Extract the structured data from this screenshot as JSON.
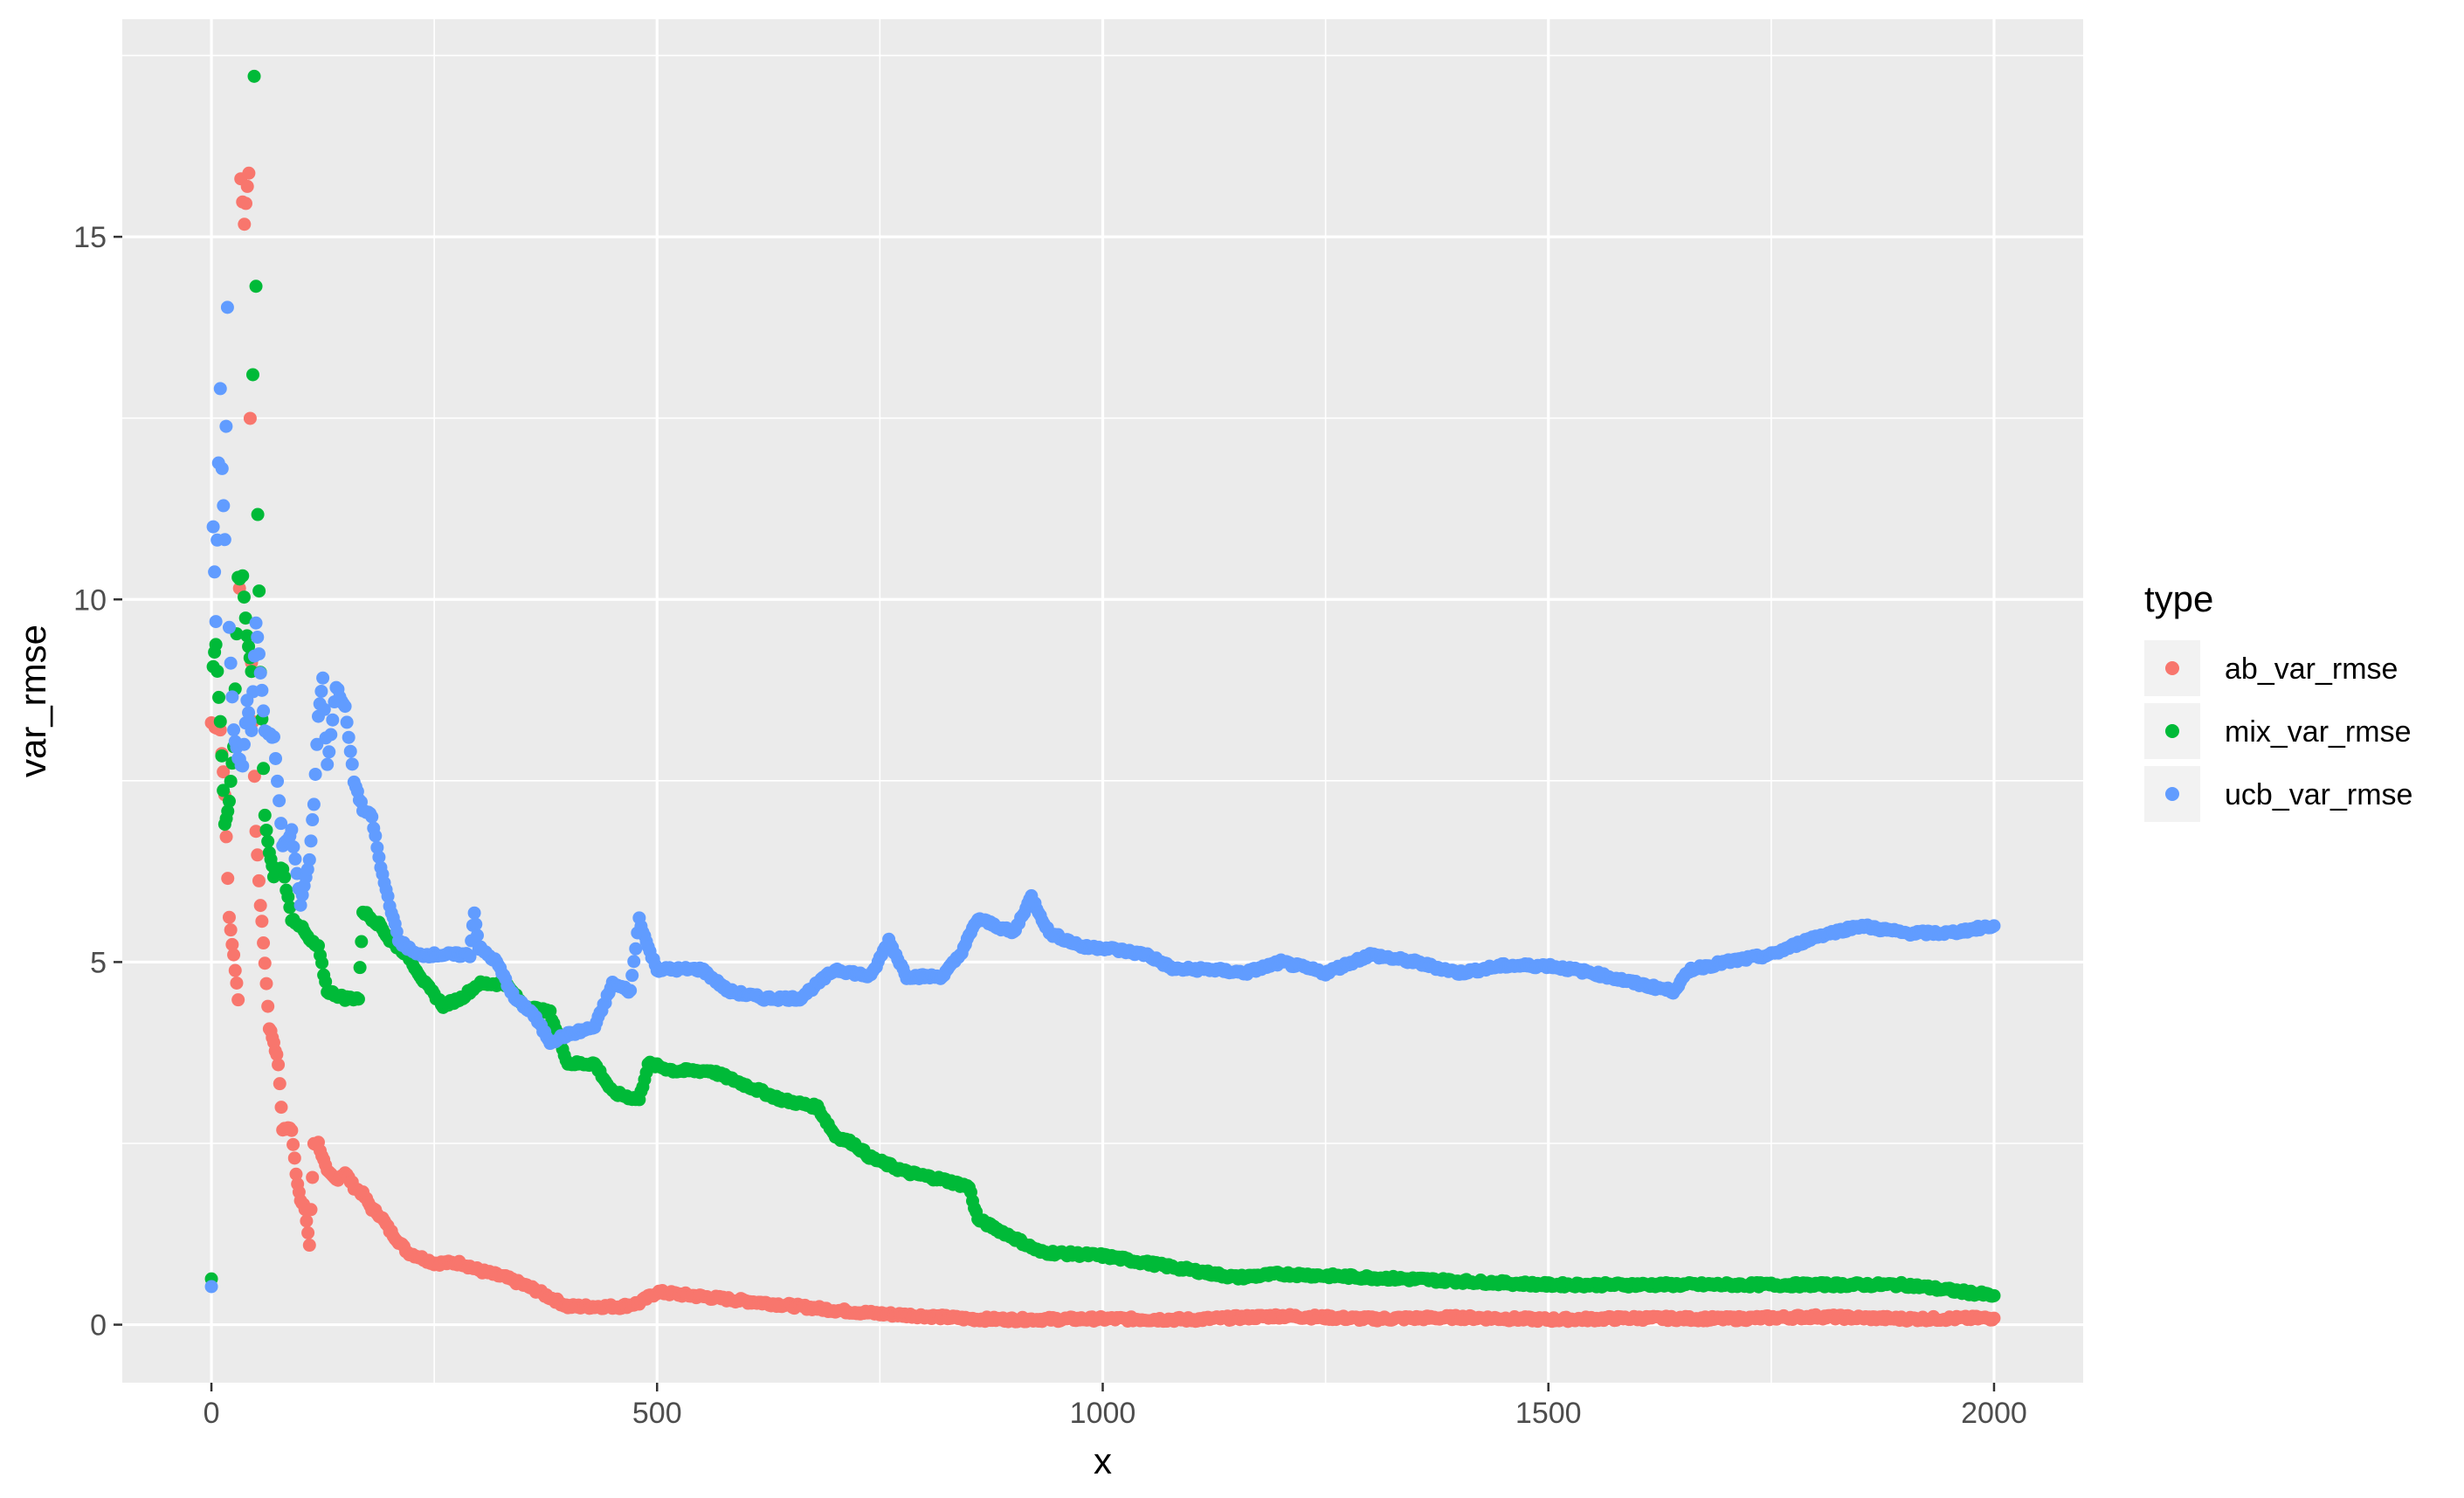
{
  "chart_data": {
    "type": "scatter",
    "title": "",
    "xlabel": "x",
    "ylabel": "var_rmse",
    "xlim": [
      -100,
      2100
    ],
    "ylim": [
      -0.8,
      18
    ],
    "x_ticks": [
      0,
      500,
      1000,
      1500,
      2000
    ],
    "y_ticks": [
      0,
      5,
      10,
      15
    ],
    "grid": true,
    "legend": {
      "title": "type",
      "placement": "right"
    },
    "series": [
      {
        "name": "ab_var_rmse",
        "color": "#F8766D",
        "anchors": [
          [
            0,
            8.3
          ],
          [
            10,
            8.2
          ],
          [
            15,
            7.3
          ],
          [
            20,
            5.6
          ],
          [
            25,
            5.1
          ],
          [
            30,
            4.5
          ],
          [
            33,
            15.8
          ],
          [
            37,
            15.2
          ],
          [
            42,
            15.9
          ],
          [
            45,
            9.1
          ],
          [
            50,
            6.8
          ],
          [
            55,
            5.8
          ],
          [
            60,
            5.0
          ],
          [
            65,
            4.1
          ],
          [
            70,
            3.9
          ],
          [
            75,
            3.6
          ],
          [
            80,
            2.7
          ],
          [
            90,
            2.7
          ],
          [
            95,
            2.1
          ],
          [
            100,
            1.7
          ],
          [
            105,
            1.6
          ],
          [
            110,
            1.1
          ],
          [
            115,
            2.5
          ],
          [
            120,
            2.5
          ],
          [
            130,
            2.1
          ],
          [
            140,
            2.0
          ],
          [
            150,
            2.1
          ],
          [
            160,
            1.9
          ],
          [
            170,
            1.8
          ],
          [
            180,
            1.6
          ],
          [
            190,
            1.5
          ],
          [
            200,
            1.3
          ],
          [
            220,
            1.0
          ],
          [
            250,
            0.85
          ],
          [
            280,
            0.85
          ],
          [
            300,
            0.75
          ],
          [
            330,
            0.65
          ],
          [
            360,
            0.5
          ],
          [
            400,
            0.25
          ],
          [
            430,
            0.25
          ],
          [
            460,
            0.25
          ],
          [
            480,
            0.3
          ],
          [
            500,
            0.45
          ],
          [
            540,
            0.4
          ],
          [
            580,
            0.35
          ],
          [
            620,
            0.3
          ],
          [
            660,
            0.25
          ],
          [
            700,
            0.2
          ],
          [
            750,
            0.15
          ],
          [
            800,
            0.12
          ],
          [
            850,
            0.08
          ],
          [
            900,
            0.07
          ],
          [
            1000,
            0.08
          ],
          [
            1100,
            0.07
          ],
          [
            1200,
            0.12
          ],
          [
            1300,
            0.08
          ],
          [
            1400,
            0.1
          ],
          [
            1500,
            0.07
          ],
          [
            1600,
            0.09
          ],
          [
            1700,
            0.08
          ],
          [
            1800,
            0.11
          ],
          [
            1900,
            0.08
          ],
          [
            2000,
            0.09
          ]
        ]
      },
      {
        "name": "mix_var_rmse",
        "color": "#00BA38",
        "anchors": [
          [
            0,
            0.65
          ],
          [
            2,
            9.1
          ],
          [
            5,
            9.4
          ],
          [
            10,
            8.3
          ],
          [
            15,
            6.9
          ],
          [
            20,
            7.2
          ],
          [
            25,
            8.0
          ],
          [
            30,
            10.3
          ],
          [
            35,
            10.3
          ],
          [
            40,
            9.5
          ],
          [
            45,
            9.0
          ],
          [
            48,
            17.2
          ],
          [
            50,
            14.3
          ],
          [
            52,
            11.2
          ],
          [
            55,
            9.0
          ],
          [
            60,
            7.0
          ],
          [
            65,
            6.5
          ],
          [
            70,
            6.2
          ],
          [
            80,
            6.3
          ],
          [
            90,
            5.6
          ],
          [
            100,
            5.5
          ],
          [
            110,
            5.3
          ],
          [
            120,
            5.2
          ],
          [
            130,
            4.6
          ],
          [
            150,
            4.5
          ],
          [
            165,
            4.5
          ],
          [
            170,
            5.7
          ],
          [
            190,
            5.5
          ],
          [
            200,
            5.3
          ],
          [
            220,
            5.1
          ],
          [
            240,
            4.7
          ],
          [
            260,
            4.4
          ],
          [
            280,
            4.5
          ],
          [
            300,
            4.7
          ],
          [
            330,
            4.7
          ],
          [
            350,
            4.4
          ],
          [
            380,
            4.3
          ],
          [
            400,
            3.6
          ],
          [
            430,
            3.6
          ],
          [
            450,
            3.2
          ],
          [
            480,
            3.1
          ],
          [
            490,
            3.6
          ],
          [
            520,
            3.5
          ],
          [
            560,
            3.5
          ],
          [
            600,
            3.3
          ],
          [
            640,
            3.1
          ],
          [
            680,
            3.0
          ],
          [
            700,
            2.6
          ],
          [
            720,
            2.5
          ],
          [
            740,
            2.3
          ],
          [
            780,
            2.1
          ],
          [
            820,
            2.0
          ],
          [
            850,
            1.9
          ],
          [
            860,
            1.45
          ],
          [
            900,
            1.2
          ],
          [
            930,
            1.0
          ],
          [
            1000,
            0.95
          ],
          [
            1050,
            0.85
          ],
          [
            1100,
            0.75
          ],
          [
            1150,
            0.65
          ],
          [
            1200,
            0.7
          ],
          [
            1300,
            0.65
          ],
          [
            1400,
            0.6
          ],
          [
            1500,
            0.55
          ],
          [
            1600,
            0.55
          ],
          [
            1700,
            0.55
          ],
          [
            1800,
            0.55
          ],
          [
            1900,
            0.55
          ],
          [
            2000,
            0.4
          ]
        ]
      },
      {
        "name": "ucb_var_rmse",
        "color": "#619CFF",
        "anchors": [
          [
            0,
            0.5
          ],
          [
            2,
            11.0
          ],
          [
            5,
            9.7
          ],
          [
            8,
            11.9
          ],
          [
            10,
            12.9
          ],
          [
            12,
            11.8
          ],
          [
            15,
            10.8
          ],
          [
            18,
            14.0
          ],
          [
            20,
            9.6
          ],
          [
            25,
            8.2
          ],
          [
            30,
            7.8
          ],
          [
            35,
            7.7
          ],
          [
            40,
            8.6
          ],
          [
            45,
            8.2
          ],
          [
            50,
            9.7
          ],
          [
            55,
            9.0
          ],
          [
            60,
            8.2
          ],
          [
            70,
            8.1
          ],
          [
            80,
            6.6
          ],
          [
            90,
            6.8
          ],
          [
            100,
            5.8
          ],
          [
            110,
            6.4
          ],
          [
            115,
            7.2
          ],
          [
            120,
            8.4
          ],
          [
            125,
            8.9
          ],
          [
            130,
            7.7
          ],
          [
            140,
            8.8
          ],
          [
            150,
            8.5
          ],
          [
            160,
            7.5
          ],
          [
            170,
            7.1
          ],
          [
            180,
            7.0
          ],
          [
            190,
            6.3
          ],
          [
            200,
            5.8
          ],
          [
            210,
            5.3
          ],
          [
            230,
            5.1
          ],
          [
            250,
            5.1
          ],
          [
            270,
            5.1
          ],
          [
            290,
            5.1
          ],
          [
            295,
            5.7
          ],
          [
            300,
            5.2
          ],
          [
            320,
            5.0
          ],
          [
            340,
            4.5
          ],
          [
            360,
            4.3
          ],
          [
            380,
            3.9
          ],
          [
            400,
            4.0
          ],
          [
            430,
            4.1
          ],
          [
            450,
            4.7
          ],
          [
            470,
            4.6
          ],
          [
            480,
            5.6
          ],
          [
            490,
            5.2
          ],
          [
            500,
            4.9
          ],
          [
            550,
            4.9
          ],
          [
            580,
            4.6
          ],
          [
            620,
            4.5
          ],
          [
            660,
            4.5
          ],
          [
            680,
            4.7
          ],
          [
            700,
            4.9
          ],
          [
            740,
            4.8
          ],
          [
            760,
            5.3
          ],
          [
            780,
            4.8
          ],
          [
            820,
            4.8
          ],
          [
            840,
            5.1
          ],
          [
            860,
            5.6
          ],
          [
            900,
            5.4
          ],
          [
            920,
            5.9
          ],
          [
            940,
            5.4
          ],
          [
            980,
            5.2
          ],
          [
            1000,
            5.2
          ],
          [
            1050,
            5.1
          ],
          [
            1080,
            4.9
          ],
          [
            1120,
            4.9
          ],
          [
            1160,
            4.85
          ],
          [
            1200,
            5.0
          ],
          [
            1250,
            4.85
          ],
          [
            1300,
            5.1
          ],
          [
            1350,
            5.0
          ],
          [
            1400,
            4.85
          ],
          [
            1450,
            4.95
          ],
          [
            1500,
            4.95
          ],
          [
            1550,
            4.85
          ],
          [
            1600,
            4.7
          ],
          [
            1640,
            4.6
          ],
          [
            1660,
            4.9
          ],
          [
            1700,
            5.0
          ],
          [
            1750,
            5.1
          ],
          [
            1800,
            5.35
          ],
          [
            1850,
            5.5
          ],
          [
            1900,
            5.4
          ],
          [
            1950,
            5.4
          ],
          [
            2000,
            5.5
          ]
        ]
      }
    ]
  }
}
